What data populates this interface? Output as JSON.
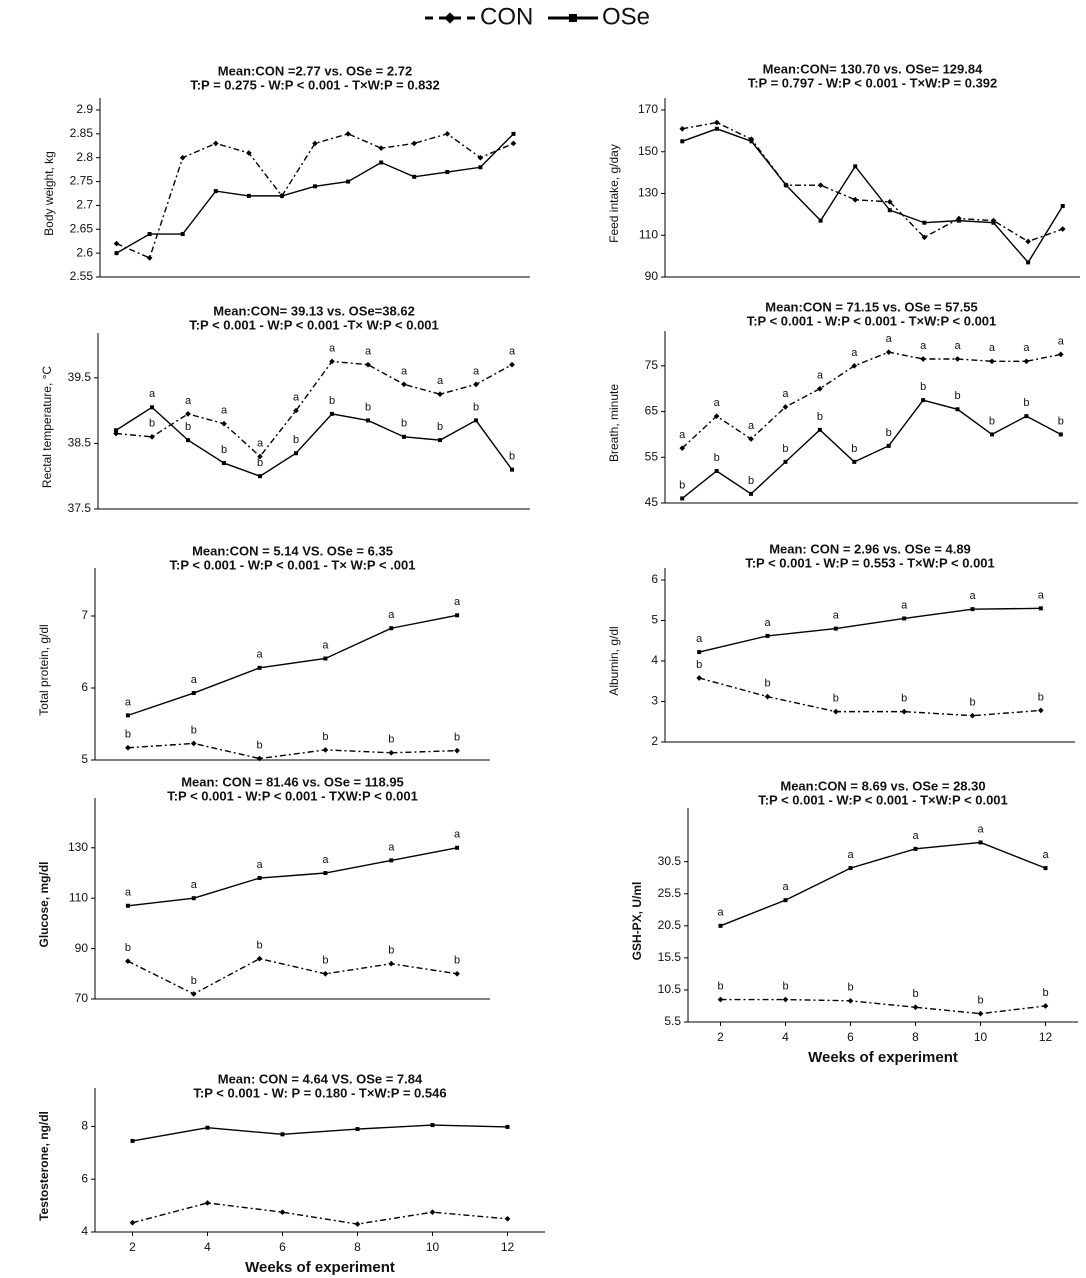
{
  "chart_data": [
    {
      "type": "line",
      "title": "Mean:CON =2.77 vs. OSe = 2.72",
      "subtitle": "T:P = 0.275 - W:P < 0.001 - T×W:P = 0.832",
      "ylabel": "Body weight, kg",
      "categories": [
        null,
        null,
        null,
        null,
        null,
        null,
        null,
        null,
        null,
        null,
        null,
        null,
        null
      ],
      "ylim": [
        2.55,
        2.9
      ],
      "yticks": [
        2.55,
        2.6,
        2.65,
        2.7,
        2.75,
        2.8,
        2.85,
        2.9
      ],
      "series": [
        {
          "name": "CON",
          "style": "dashed",
          "color": "#000",
          "values": [
            2.62,
            2.59,
            2.8,
            2.83,
            2.81,
            2.72,
            2.83,
            2.85,
            2.82,
            2.83,
            2.85,
            2.8,
            2.83
          ]
        },
        {
          "name": "OSe",
          "style": "solid",
          "color": "#000",
          "values": [
            2.6,
            2.64,
            2.64,
            2.73,
            2.72,
            2.72,
            2.74,
            2.75,
            2.79,
            2.76,
            2.77,
            2.78,
            2.85
          ]
        }
      ]
    },
    {
      "type": "line",
      "title": "Mean:CON= 130.70 vs. OSe= 129.84",
      "subtitle": "T:P = 0.797 - W:P < 0.001 - T×W:P = 0.392",
      "ylabel": "Feed intake, g/day",
      "categories": [
        null,
        null,
        null,
        null,
        null,
        null,
        null,
        null,
        null,
        null,
        null,
        null
      ],
      "ylim": [
        90,
        170
      ],
      "yticks": [
        90,
        110,
        130,
        150,
        170
      ],
      "series": [
        {
          "style": "dashed",
          "color": "#000",
          "values": [
            161,
            164,
            156,
            134,
            134,
            127,
            126,
            109,
            118,
            117,
            107,
            113
          ]
        },
        {
          "style": "solid",
          "color": "#000",
          "values": [
            155,
            161,
            155,
            134,
            117,
            143,
            122,
            116,
            117,
            116,
            97,
            124
          ]
        }
      ]
    },
    {
      "type": "line",
      "title": "Mean:CON= 39.13 vs.  OSe=38.62",
      "subtitle": "T:P < 0.001 - W:P < 0.001 -T× W:P < 0.001",
      "ylabel": "Rectal temperature, °C",
      "categories": [
        null,
        null,
        null,
        null,
        null,
        null,
        null,
        null,
        null,
        null,
        null,
        null
      ],
      "ylim": [
        37.5,
        40
      ],
      "yticks": [
        37.5,
        38.5,
        39.5
      ],
      "series": [
        {
          "style": "dashed",
          "color": "#000",
          "values": [
            38.65,
            38.6,
            38.95,
            38.8,
            38.3,
            39.0,
            39.75,
            39.7,
            39.4,
            39.25,
            39.4,
            39.7
          ],
          "letters": [
            null,
            "b",
            "a",
            "a",
            "a",
            "a",
            "a",
            "a",
            "a",
            "a",
            "a",
            "a"
          ]
        },
        {
          "style": "solid",
          "color": "#000",
          "values": [
            38.7,
            39.05,
            38.55,
            38.2,
            38.0,
            38.35,
            38.95,
            38.85,
            38.6,
            38.55,
            38.85,
            38.1
          ],
          "letters": [
            null,
            "a",
            "b",
            "b",
            "b",
            "b",
            "b",
            "b",
            "b",
            "b",
            "b",
            "b"
          ]
        }
      ]
    },
    {
      "type": "line",
      "title": "Mean:CON = 71.15 vs. OSe = 57.55",
      "subtitle": "T:P < 0.001 - W:P < 0.001 - T×W:P < 0.001",
      "ylabel": "Breath, minute",
      "categories": [
        null,
        null,
        null,
        null,
        null,
        null,
        null,
        null,
        null,
        null,
        null,
        null
      ],
      "ylim": [
        45,
        80
      ],
      "yticks": [
        45,
        55,
        65,
        75
      ],
      "series": [
        {
          "style": "dashed",
          "color": "#000",
          "values": [
            57,
            64,
            59,
            66,
            70,
            75,
            78,
            76.5,
            76.5,
            76,
            76,
            77.5
          ],
          "letters": [
            "a",
            "a",
            "a",
            "a",
            "a",
            "a",
            "a",
            "a",
            "a",
            "a",
            "a",
            "a"
          ]
        },
        {
          "style": "solid",
          "color": "#000",
          "values": [
            46,
            52,
            47,
            54,
            61,
            54,
            57.5,
            67.5,
            65.5,
            60,
            64,
            60
          ],
          "letters": [
            "b",
            "b",
            "b",
            "b",
            "b",
            "b",
            "b",
            "b",
            "b",
            "b",
            "b",
            "b"
          ]
        }
      ]
    },
    {
      "type": "line",
      "title": "Mean:CON = 5.14 VS. OSe = 6.35",
      "subtitle": "T:P < 0.001 - W:P < 0.001 - T× W:P < .001",
      "ylabel": "Total protein, g/dl",
      "categories": [
        null,
        null,
        null,
        null,
        null,
        null
      ],
      "ylim": [
        5,
        7.5
      ],
      "yticks": [
        5,
        6,
        7
      ],
      "series": [
        {
          "style": "dashed",
          "color": "#000",
          "values": [
            5.17,
            5.23,
            5.02,
            5.14,
            5.1,
            5.13
          ],
          "letters": [
            "b",
            "b",
            "b",
            "b",
            "b",
            "b"
          ]
        },
        {
          "style": "solid",
          "color": "#000",
          "values": [
            5.62,
            5.93,
            6.28,
            6.41,
            6.83,
            7.01
          ],
          "letters": [
            "a",
            "a",
            "a",
            "a",
            "a",
            "a"
          ]
        }
      ]
    },
    {
      "type": "line",
      "title": "Mean: CON = 2.96 vs. OSe = 4.89",
      "subtitle": "T:P < 0.001 - W:P = 0.553 - T×W:P < 0.001",
      "ylabel": "Albumin, g/dl",
      "categories": [
        null,
        null,
        null,
        null,
        null,
        null
      ],
      "ylim": [
        2,
        6
      ],
      "yticks": [
        2,
        3,
        4,
        5,
        6
      ],
      "series": [
        {
          "style": "dashed",
          "color": "#000",
          "values": [
            3.58,
            3.12,
            2.75,
            2.75,
            2.65,
            2.78
          ],
          "letters": [
            "b",
            "b",
            "b",
            "b",
            "b",
            "b"
          ]
        },
        {
          "style": "solid",
          "color": "#000",
          "values": [
            4.22,
            4.62,
            4.8,
            5.05,
            5.28,
            5.3
          ],
          "letters": [
            "a",
            "a",
            "a",
            "a",
            "a",
            "a"
          ]
        }
      ]
    },
    {
      "type": "line",
      "title": "Mean: CON = 81.46 vs. OSe = 118.95",
      "subtitle": "T:P < 0.001 - W:P < 0.001 - TXW:P < 0.001",
      "ylabel": "Glucose, mg/dl",
      "categories": [
        null,
        null,
        null,
        null,
        null,
        null
      ],
      "ylim": [
        70,
        145
      ],
      "yticks": [
        70,
        90,
        110,
        130
      ],
      "series": [
        {
          "style": "dashed",
          "color": "#000",
          "values": [
            85,
            72,
            86,
            80,
            84,
            80
          ],
          "letters": [
            "b",
            "b",
            "b",
            "b",
            "b",
            "b"
          ]
        },
        {
          "style": "solid",
          "color": "#000",
          "values": [
            107,
            110,
            118,
            120,
            125,
            130
          ],
          "letters": [
            "a",
            "a",
            "a",
            "a",
            "a",
            "a"
          ]
        }
      ]
    },
    {
      "type": "line",
      "title": "Mean:CON = 8.69 vs. OSe = 28.30",
      "subtitle": "T:P < 0.001 - W:P < 0.001 - T×W:P < 0.001",
      "ylabel": "GSH-PX, U/ml",
      "xlabel": "Weeks of experiment",
      "x": [
        2,
        4,
        6,
        8,
        10,
        12
      ],
      "xlim": [
        1,
        13
      ],
      "xticks": [
        2,
        4,
        6,
        8,
        10,
        12
      ],
      "ylim": [
        5.5,
        37
      ],
      "yticks": [
        5.5,
        10.5,
        15.5,
        20.5,
        25.5,
        30.5
      ],
      "series": [
        {
          "style": "dashed",
          "color": "#000",
          "values": [
            9,
            9,
            8.8,
            7.8,
            6.8,
            8
          ],
          "letters": [
            "b",
            "b",
            "b",
            "b",
            "b",
            "b"
          ]
        },
        {
          "style": "solid",
          "color": "#000",
          "values": [
            20.5,
            24.5,
            29.5,
            32.5,
            33.5,
            29.5
          ],
          "letters": [
            "a",
            "a",
            "a",
            "a",
            "a",
            "a"
          ]
        }
      ]
    },
    {
      "type": "line",
      "title": "Mean: CON = 4.64 VS. OSe = 7.84",
      "subtitle": "T:P < 0.001  - W: P = 0.180 -  T×W:P = 0.546",
      "ylabel": "Testosterone, ng/dl",
      "xlabel": "Weeks of experiment",
      "x": [
        2,
        4,
        6,
        8,
        10,
        12
      ],
      "xlim": [
        1,
        13
      ],
      "xticks": [
        2,
        4,
        6,
        8,
        10,
        12
      ],
      "ylim": [
        4,
        9
      ],
      "yticks": [
        4,
        6,
        8
      ],
      "series": [
        {
          "style": "dashed",
          "color": "#000",
          "values": [
            4.35,
            5.1,
            4.75,
            4.3,
            4.75,
            4.5
          ]
        },
        {
          "style": "solid",
          "color": "#000",
          "values": [
            7.45,
            7.95,
            7.7,
            7.9,
            8.05,
            7.98
          ]
        }
      ]
    }
  ]
}
